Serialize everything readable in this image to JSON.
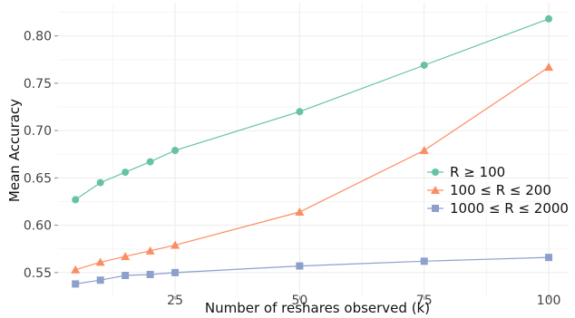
{
  "chart_data": {
    "type": "line",
    "title": "",
    "xlabel": "Number of reshares observed (k)",
    "ylabel": "Mean Accuracy",
    "xlim": [
      1.5,
      104
    ],
    "ylim": [
      0.525,
      0.835
    ],
    "xticks": [
      25,
      50,
      75,
      100
    ],
    "xtick_labels": [
      "25",
      "50",
      "75",
      "100"
    ],
    "yticks": [
      0.55,
      0.6,
      0.65,
      0.7,
      0.75,
      0.8
    ],
    "ytick_labels": [
      "0.55",
      "0.60",
      "0.65",
      "0.70",
      "0.75",
      "0.80"
    ],
    "grid": true,
    "legend_position": "right",
    "series": [
      {
        "name": "R ≥ 100",
        "color": "#66c2a5",
        "marker": "circle",
        "points": [
          {
            "x": 5,
            "y": 0.627
          },
          {
            "x": 10,
            "y": 0.645
          },
          {
            "x": 15,
            "y": 0.656
          },
          {
            "x": 20,
            "y": 0.667
          },
          {
            "x": 25,
            "y": 0.679
          },
          {
            "x": 50,
            "y": 0.72
          },
          {
            "x": 75,
            "y": 0.769
          },
          {
            "x": 100,
            "y": 0.818
          }
        ]
      },
      {
        "name": "100 ≤ R ≤ 200",
        "color": "#fc8d62",
        "marker": "triangle",
        "points": [
          {
            "x": 5,
            "y": 0.553
          },
          {
            "x": 10,
            "y": 0.561
          },
          {
            "x": 15,
            "y": 0.567
          },
          {
            "x": 20,
            "y": 0.573
          },
          {
            "x": 25,
            "y": 0.579
          },
          {
            "x": 50,
            "y": 0.614
          },
          {
            "x": 75,
            "y": 0.679
          },
          {
            "x": 100,
            "y": 0.767
          }
        ]
      },
      {
        "name": "1000 ≤ R ≤ 2000",
        "color": "#8da0cb",
        "marker": "square",
        "points": [
          {
            "x": 5,
            "y": 0.538
          },
          {
            "x": 10,
            "y": 0.542
          },
          {
            "x": 15,
            "y": 0.547
          },
          {
            "x": 20,
            "y": 0.548
          },
          {
            "x": 25,
            "y": 0.55
          },
          {
            "x": 50,
            "y": 0.557
          },
          {
            "x": 75,
            "y": 0.562
          },
          {
            "x": 100,
            "y": 0.566
          }
        ]
      }
    ]
  }
}
